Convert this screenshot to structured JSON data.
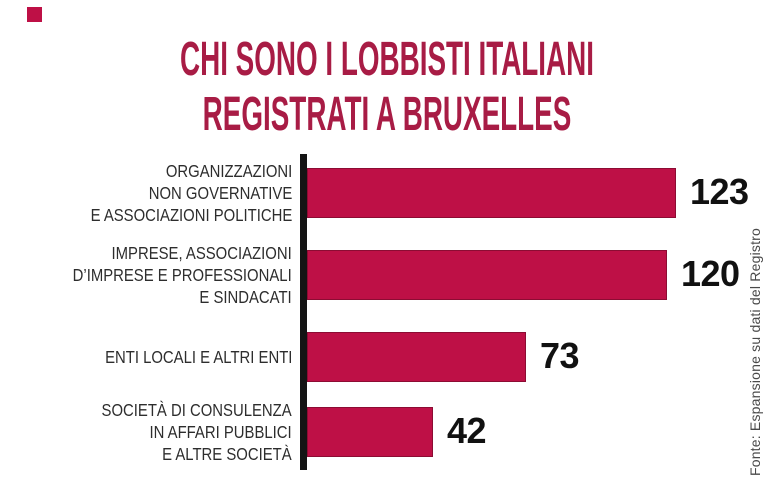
{
  "page": {
    "background": "#ffffff"
  },
  "brand_square": {
    "color": "#be1046"
  },
  "title": {
    "line1": "CHI SONO I LOBBISTI ITALIANI",
    "line2": "REGISTRATI A BRUXELLES",
    "color": "#a81c45"
  },
  "source_note": {
    "text": "Fonte: Espansione su dati del Registro",
    "color": "#4a4a4a"
  },
  "chart_data": {
    "type": "bar",
    "orientation": "horizontal",
    "title": "CHI SONO I LOBBISTI ITALIANI REGISTRATI A BRUXELLES",
    "categories": [
      "ORGANIZZAZIONI NON GOVERNATIVE E ASSOCIAZIONI POLITICHE",
      "IMPRESE, ASSOCIAZIONI D’IMPRESE E PROFESSIONALI E SINDACATI",
      "ENTI LOCALI E ALTRI ENTI",
      "SOCIETÀ DI CONSULENZA IN AFFARI PUBBLICI E ALTRE SOCIETÀ"
    ],
    "category_lines": [
      [
        "ORGANIZZAZIONI",
        "NON GOVERNATIVE",
        "E ASSOCIAZIONI POLITICHE"
      ],
      [
        "IMPRESE, ASSOCIAZIONI",
        "D’IMPRESE E PROFESSIONALI",
        "E SINDACATI"
      ],
      [
        "ENTI LOCALI E ALTRI ENTI"
      ],
      [
        "SOCIETÀ DI CONSULENZA",
        "IN AFFARI PUBBLICI",
        "E ALTRE SOCIETÀ"
      ]
    ],
    "values": [
      123,
      120,
      73,
      42
    ],
    "value_labels": [
      "123",
      "120",
      "73",
      "42"
    ],
    "xlim": [
      0,
      130
    ],
    "grid": false,
    "legend": false,
    "bar_color": "#be1046",
    "bar_border_color": "#8c0c33",
    "axis_line_color": "#141414",
    "label_color": "#2d2d2d",
    "value_color": "#111111",
    "source": "Fonte: Espansione su dati del Registro"
  }
}
